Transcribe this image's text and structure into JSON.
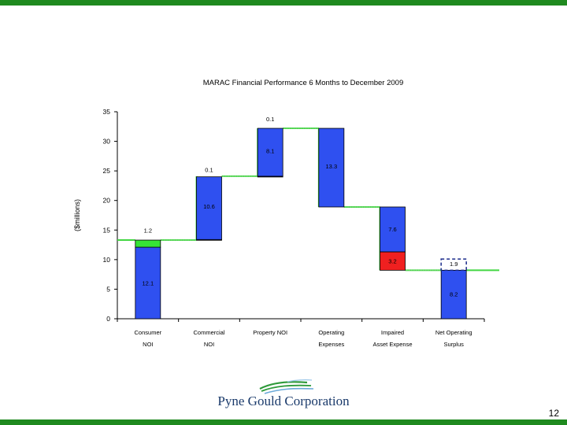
{
  "slide": {
    "page_number": "12"
  },
  "brand": {
    "company": "Pyne Gould Corporation",
    "green": "#1f8a1f"
  },
  "colors": {
    "bar_blue": "#2f50f0",
    "bar_green": "#36e436",
    "bar_red": "#f02020",
    "connector": "#42d642"
  },
  "chart_data": {
    "type": "waterfall",
    "title": "MARAC Financial Performance 6 Months to December 2009",
    "ylabel": "($millions)",
    "ylim": [
      0,
      35
    ],
    "yticks": [
      0,
      5,
      10,
      15,
      20,
      25,
      30,
      35
    ],
    "categories": [
      {
        "lines": [
          "Consumer",
          "NOI"
        ]
      },
      {
        "lines": [
          "Commercial",
          "NOI"
        ]
      },
      {
        "lines": [
          "Property NOI"
        ]
      },
      {
        "lines": [
          "Operating",
          "Expenses"
        ]
      },
      {
        "lines": [
          "Impaired",
          "Asset Expense"
        ]
      },
      {
        "lines": [
          "Net Operating",
          "Surplus"
        ]
      }
    ],
    "segments": [
      {
        "cat": 0,
        "from": 0,
        "to": 12.1,
        "color": "blue",
        "label": "12.1"
      },
      {
        "cat": 0,
        "from": 12.1,
        "to": 13.3,
        "color": "green",
        "label": "1.2",
        "label_at": 15.0
      },
      {
        "cat": 1,
        "from": 13.3,
        "to": 13.4,
        "color": "blue",
        "label": "0.1",
        "label_at": 25.2
      },
      {
        "cat": 1,
        "from": 13.4,
        "to": 24.0,
        "color": "blue",
        "label": "10.6",
        "label_at": 19.0
      },
      {
        "cat": 2,
        "from": 24.0,
        "to": 24.1,
        "color": "blue",
        "label": "0.1",
        "label_at": 33.8
      },
      {
        "cat": 2,
        "from": 24.1,
        "to": 32.2,
        "color": "blue",
        "label": "8.1",
        "label_at": 28.4
      },
      {
        "cat": 3,
        "from": 18.9,
        "to": 32.2,
        "color": "blue",
        "label": "13.3",
        "label_at": 25.8
      },
      {
        "cat": 4,
        "from": 11.3,
        "to": 18.9,
        "color": "blue",
        "label": "7.6",
        "label_at": 15.2
      },
      {
        "cat": 4,
        "from": 8.2,
        "to": 11.3,
        "color": "red",
        "label": "3.2",
        "label_at": 9.8
      },
      {
        "cat": 5,
        "from": 0,
        "to": 8.2,
        "color": "blue",
        "label": "8.2",
        "label_at": 4.2
      },
      {
        "cat": 5,
        "from": 8.2,
        "to": 10.1,
        "color": "outline",
        "label": "1.9",
        "label_at": 9.3
      }
    ],
    "connector_levels": [
      13.3,
      24.1,
      32.2,
      18.9,
      8.2
    ]
  }
}
